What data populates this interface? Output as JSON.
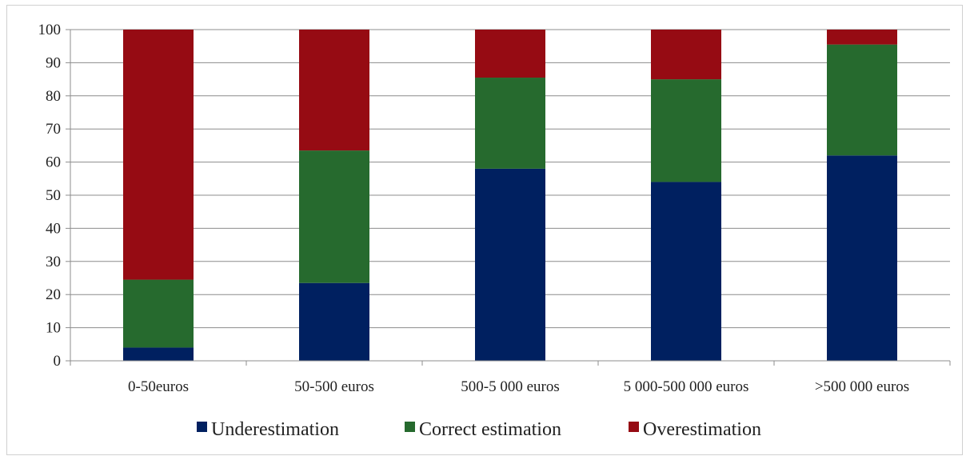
{
  "chart_data": {
    "type": "bar",
    "stacked": true,
    "categories": [
      "0-50euros",
      "50-500 euros",
      "500-5 000 euros",
      "5 000-500 000 euros",
      ">500 000 euros"
    ],
    "series": [
      {
        "name": "Underestimation",
        "color": "#002060",
        "values": [
          4,
          23.5,
          58,
          54,
          62
        ]
      },
      {
        "name": "Correct estimation",
        "color": "#266a2e",
        "values": [
          20.5,
          40,
          27.5,
          31,
          33.5
        ]
      },
      {
        "name": "Overestimation",
        "color": "#960b13",
        "values": [
          75.5,
          36.5,
          14.5,
          15,
          4.5
        ]
      }
    ],
    "ylim": [
      0,
      100
    ],
    "yticks": [
      0,
      10,
      20,
      30,
      40,
      50,
      60,
      70,
      80,
      90,
      100
    ],
    "grid": true,
    "legend_position": "bottom",
    "title": "",
    "xlabel": "",
    "ylabel": ""
  }
}
